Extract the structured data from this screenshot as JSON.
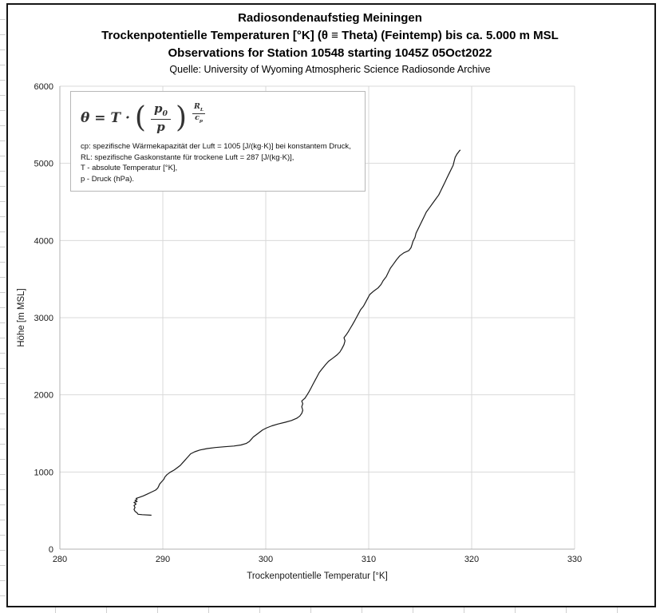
{
  "header": {
    "title1": "Radiosondenaufstieg Meiningen",
    "title2": "Trockenpotentielle Temperaturen [°K] (θ ≡ Theta) (Feintemp) bis ca. 5.000 m MSL",
    "title3": "Observations for Station 10548 starting 1045Z 05Oct2022",
    "source": "Quelle: University of Wyoming Atmospheric Science Radiosonde Archive"
  },
  "formula_box": {
    "lhs": "θ = T ·",
    "open_paren": "(",
    "close_paren": ")",
    "frac_num_base": "p",
    "frac_num_sub": "0",
    "frac_den": "p",
    "exp_num_base": "R",
    "exp_num_sub": "L",
    "exp_den_base": "c",
    "exp_den_sub": "p",
    "lines": [
      "cp: spezifische Wärmekapazität der Luft = 1005 [J/(kg·K)] bei konstantem Druck,",
      "RL: spezifische Gaskonstante für trockene Luft = 287 [J/(kg·K)],",
      "T - absolute Temperatur [°K],",
      "p - Druck (hPa)."
    ]
  },
  "chart_data": {
    "type": "line",
    "title": "Radiosondenaufstieg Meiningen",
    "subtitle": "Trockenpotentielle Temperaturen [°K] (θ ≡ Theta) (Feintemp) bis ca. 5.000 m MSL",
    "xlabel": "Trockenpotentielle Temperatur [°K]",
    "ylabel": "Höhe [m MSL]",
    "xlim": [
      280,
      330
    ],
    "ylim": [
      0,
      6000
    ],
    "x_ticks": [
      280,
      290,
      300,
      310,
      320,
      330
    ],
    "y_ticks": [
      0,
      1000,
      2000,
      3000,
      4000,
      5000,
      6000
    ],
    "grid": true,
    "legend": "none",
    "line_color": "#1a1a1a",
    "grid_color": "#d9d9d9",
    "axis_color": "#b0b0b0",
    "series": [
      {
        "name": "Trockenpotentielle Temperatur [°K]",
        "points": [
          [
            288.9,
            440
          ],
          [
            288.0,
            447
          ],
          [
            287.6,
            452
          ],
          [
            287.5,
            470
          ],
          [
            287.3,
            490
          ],
          [
            287.2,
            515
          ],
          [
            287.3,
            540
          ],
          [
            287.2,
            565
          ],
          [
            287.4,
            585
          ],
          [
            287.2,
            605
          ],
          [
            287.5,
            618
          ],
          [
            287.3,
            632
          ],
          [
            287.5,
            645
          ],
          [
            287.4,
            658
          ],
          [
            287.7,
            670
          ],
          [
            288.1,
            690
          ],
          [
            288.5,
            715
          ],
          [
            288.9,
            740
          ],
          [
            289.3,
            765
          ],
          [
            289.5,
            790
          ],
          [
            289.6,
            815
          ],
          [
            289.7,
            845
          ],
          [
            289.9,
            875
          ],
          [
            290.1,
            905
          ],
          [
            290.2,
            935
          ],
          [
            290.4,
            965
          ],
          [
            290.7,
            995
          ],
          [
            291.1,
            1025
          ],
          [
            291.4,
            1055
          ],
          [
            291.7,
            1085
          ],
          [
            291.9,
            1115
          ],
          [
            292.1,
            1145
          ],
          [
            292.3,
            1175
          ],
          [
            292.5,
            1205
          ],
          [
            292.7,
            1235
          ],
          [
            293.1,
            1262
          ],
          [
            293.6,
            1285
          ],
          [
            294.3,
            1303
          ],
          [
            295.1,
            1317
          ],
          [
            296.0,
            1327
          ],
          [
            296.9,
            1337
          ],
          [
            297.6,
            1350
          ],
          [
            298.1,
            1370
          ],
          [
            298.4,
            1395
          ],
          [
            298.6,
            1425
          ],
          [
            298.8,
            1455
          ],
          [
            299.1,
            1485
          ],
          [
            299.4,
            1515
          ],
          [
            299.7,
            1545
          ],
          [
            300.1,
            1572
          ],
          [
            300.6,
            1598
          ],
          [
            301.2,
            1622
          ],
          [
            301.9,
            1645
          ],
          [
            302.5,
            1668
          ],
          [
            303.0,
            1695
          ],
          [
            303.3,
            1725
          ],
          [
            303.5,
            1760
          ],
          [
            303.6,
            1800
          ],
          [
            303.5,
            1845
          ],
          [
            303.6,
            1885
          ],
          [
            303.5,
            1920
          ],
          [
            303.8,
            1955
          ],
          [
            304.0,
            1995
          ],
          [
            304.2,
            2040
          ],
          [
            304.4,
            2090
          ],
          [
            304.6,
            2140
          ],
          [
            304.8,
            2190
          ],
          [
            305.0,
            2240
          ],
          [
            305.2,
            2290
          ],
          [
            305.5,
            2340
          ],
          [
            305.8,
            2390
          ],
          [
            306.1,
            2435
          ],
          [
            306.5,
            2475
          ],
          [
            306.9,
            2515
          ],
          [
            307.2,
            2555
          ],
          [
            307.4,
            2600
          ],
          [
            307.6,
            2650
          ],
          [
            307.7,
            2700
          ],
          [
            307.6,
            2740
          ],
          [
            307.8,
            2775
          ],
          [
            308.0,
            2815
          ],
          [
            308.2,
            2860
          ],
          [
            308.4,
            2905
          ],
          [
            308.6,
            2950
          ],
          [
            308.8,
            3000
          ],
          [
            309.0,
            3050
          ],
          [
            309.2,
            3100
          ],
          [
            309.5,
            3150
          ],
          [
            309.7,
            3200
          ],
          [
            309.9,
            3250
          ],
          [
            310.1,
            3300
          ],
          [
            310.5,
            3345
          ],
          [
            310.9,
            3385
          ],
          [
            311.2,
            3430
          ],
          [
            311.4,
            3480
          ],
          [
            311.7,
            3530
          ],
          [
            311.9,
            3585
          ],
          [
            312.1,
            3640
          ],
          [
            312.4,
            3695
          ],
          [
            312.7,
            3750
          ],
          [
            313.0,
            3800
          ],
          [
            313.4,
            3840
          ],
          [
            313.9,
            3870
          ],
          [
            314.1,
            3905
          ],
          [
            314.2,
            3945
          ],
          [
            314.3,
            3990
          ],
          [
            314.5,
            4040
          ],
          [
            314.6,
            4095
          ],
          [
            314.8,
            4150
          ],
          [
            315.0,
            4205
          ],
          [
            315.2,
            4260
          ],
          [
            315.4,
            4315
          ],
          [
            315.6,
            4370
          ],
          [
            315.9,
            4425
          ],
          [
            316.2,
            4480
          ],
          [
            316.5,
            4535
          ],
          [
            316.8,
            4590
          ],
          [
            317.0,
            4645
          ],
          [
            317.2,
            4700
          ],
          [
            317.4,
            4755
          ],
          [
            317.6,
            4810
          ],
          [
            317.8,
            4865
          ],
          [
            318.0,
            4920
          ],
          [
            318.2,
            4975
          ],
          [
            318.3,
            5030
          ],
          [
            318.4,
            5080
          ],
          [
            318.6,
            5125
          ],
          [
            318.8,
            5160
          ],
          [
            318.9,
            5175
          ]
        ]
      }
    ]
  }
}
